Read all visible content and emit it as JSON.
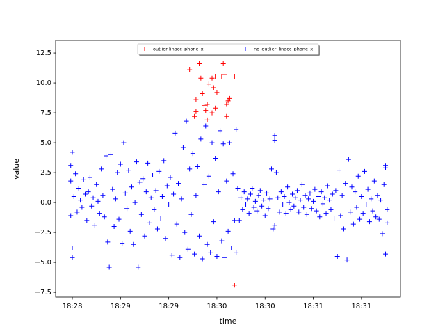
{
  "chart_data": {
    "type": "scatter",
    "xlabel": "time",
    "ylabel": "value",
    "xlim": [
      66469.6,
      66684.3
    ],
    "ylim": [
      -7.9,
      13.55
    ],
    "xticks": [
      {
        "value": 66480,
        "label": "18:28"
      },
      {
        "value": 66510,
        "label": "18:29"
      },
      {
        "value": 66540,
        "label": "18:29"
      },
      {
        "value": 66570,
        "label": "18:30"
      },
      {
        "value": 66600,
        "label": "18:30"
      },
      {
        "value": 66630,
        "label": "18:31"
      },
      {
        "value": 66660,
        "label": "18:31"
      }
    ],
    "yticks": [
      {
        "value": -7.5,
        "label": "−7.5"
      },
      {
        "value": -5,
        "label": "−5.0"
      },
      {
        "value": -2.5,
        "label": "−2.5"
      },
      {
        "value": 0,
        "label": "0.0"
      },
      {
        "value": 2.5,
        "label": "2.5"
      },
      {
        "value": 5,
        "label": "5.0"
      },
      {
        "value": 7.5,
        "label": "7.5"
      },
      {
        "value": 10,
        "label": "10.0"
      },
      {
        "value": 12.5,
        "label": "12.5"
      }
    ],
    "grid": false,
    "legend_location": "upper center",
    "series": [
      {
        "name": "outlier linacc_phone_x",
        "color": "#ff0000",
        "x": [
          66557,
          66553,
          66559,
          66560,
          66561,
          66563,
          66564,
          66565,
          66567,
          66568,
          66569,
          66570,
          66573,
          66574,
          66575,
          66576,
          66577,
          66578,
          66576,
          66581,
          66581,
          66556,
          66557,
          66562,
          66567,
          66569,
          66564
        ],
        "values": [
          8.6,
          11.1,
          11.6,
          10.4,
          9.1,
          7.7,
          8.2,
          9.9,
          10.4,
          9.6,
          10.5,
          9.2,
          10.5,
          11.6,
          10.7,
          8.2,
          8.5,
          8.7,
          7.2,
          10.5,
          -6.9,
          7.2,
          7.6,
          8.1,
          7.5,
          7.9,
          6.9
        ]
      },
      {
        "name": "no_outlier_linacc_phone_x",
        "color": "#0000ff",
        "x": [
          66479,
          66479,
          66479,
          66480,
          66480,
          66480,
          66481,
          66482,
          66483,
          66484,
          66485,
          66486,
          66487,
          66488,
          66489,
          66490,
          66491,
          66492,
          66493,
          66494,
          66495,
          66496,
          66497,
          66498,
          66499,
          66500,
          66501,
          66502,
          66503,
          66504,
          66505,
          66506,
          66507,
          66508,
          66509,
          66510,
          66511,
          66512,
          66513,
          66514,
          66515,
          66516,
          66517,
          66518,
          66519,
          66520,
          66521,
          66522,
          66523,
          66524,
          66525,
          66526,
          66527,
          66528,
          66529,
          66530,
          66531,
          66532,
          66533,
          66534,
          66535,
          66536,
          66537,
          66538,
          66539,
          66540,
          66541,
          66542,
          66543,
          66544,
          66545,
          66546,
          66547,
          66548,
          66549,
          66550,
          66551,
          66552,
          66553,
          66554,
          66555,
          66556,
          66557,
          66558,
          66559,
          66560,
          66561,
          66562,
          66563,
          66564,
          66565,
          66566,
          66567,
          66568,
          66569,
          66570,
          66571,
          66572,
          66573,
          66574,
          66575,
          66576,
          66577,
          66578,
          66579,
          66580,
          66581,
          66582,
          66582,
          66583,
          66584,
          66585,
          66586,
          66587,
          66588,
          66589,
          66590,
          66591,
          66592,
          66593,
          66594,
          66595,
          66596,
          66597,
          66598,
          66599,
          66600,
          66601,
          66602,
          66603,
          66604,
          66605,
          66606,
          66606,
          66606,
          66607,
          66608,
          66609,
          66610,
          66611,
          66612,
          66613,
          66614,
          66615,
          66616,
          66617,
          66618,
          66619,
          66620,
          66621,
          66622,
          66623,
          66624,
          66625,
          66626,
          66627,
          66628,
          66629,
          66630,
          66631,
          66632,
          66633,
          66634,
          66635,
          66636,
          66637,
          66638,
          66639,
          66640,
          66641,
          66642,
          66643,
          66644,
          66645,
          66646,
          66647,
          66648,
          66649,
          66650,
          66651,
          66652,
          66653,
          66654,
          66655,
          66656,
          66657,
          66658,
          66659,
          66660,
          66661,
          66662,
          66663,
          66664,
          66665,
          66666,
          66667,
          66668,
          66669,
          66670,
          66671,
          66672,
          66673,
          66674,
          66675,
          66675,
          66675,
          66676,
          66676
        ],
        "values": [
          1.8,
          -1.1,
          3.1,
          4.2,
          -3.8,
          -4.6,
          0.5,
          2.4,
          -0.8,
          1.2,
          0.2,
          -0.4,
          1.9,
          0.7,
          -1.5,
          0.9,
          2.1,
          -0.3,
          0.4,
          -1.9,
          1.5,
          0.1,
          -0.9,
          2.8,
          0.6,
          -1.2,
          3.9,
          -3.3,
          -5.4,
          4.0,
          1.1,
          -2.0,
          0.3,
          2.5,
          -1.4,
          3.2,
          -3.4,
          5.0,
          0.8,
          -0.5,
          2.7,
          -2.4,
          1.3,
          -3.5,
          0.0,
          3.4,
          -5.4,
          1.7,
          -1.0,
          2.0,
          -2.8,
          0.9,
          3.3,
          -1.7,
          0.4,
          2.3,
          -0.6,
          1.0,
          -2.2,
          2.6,
          -1.3,
          0.5,
          3.5,
          -3.0,
          1.4,
          -0.2,
          2.1,
          -4.4,
          0.7,
          5.8,
          -1.8,
          1.6,
          -4.6,
          0.3,
          4.6,
          -2.5,
          6.8,
          -3.9,
          2.8,
          -1.0,
          4.1,
          -4.3,
          0.6,
          3.0,
          -2.8,
          5.3,
          -4.7,
          1.5,
          6.4,
          -3.5,
          2.2,
          -4.2,
          5.0,
          -1.6,
          3.7,
          -4.5,
          0.9,
          6.0,
          -3.2,
          4.9,
          -4.6,
          1.8,
          -2.4,
          5.0,
          -3.8,
          2.4,
          -1.5,
          6.1,
          -4.2,
          1.2,
          -1.5,
          0.4,
          -0.6,
          0.9,
          -0.2,
          0.3,
          -0.9,
          0.7,
          1.2,
          -0.4,
          0.1,
          -0.7,
          0.6,
          1.0,
          -0.3,
          0.2,
          -1.1,
          0.8,
          -0.5,
          0.3,
          2.8,
          -2.2,
          5.6,
          5.2,
          -1.9,
          2.5,
          0.4,
          -0.8,
          0.9,
          -0.2,
          0.5,
          -0.9,
          1.3,
          0.0,
          -0.6,
          0.7,
          -0.3,
          0.4,
          1.0,
          -0.8,
          0.2,
          1.5,
          -0.4,
          0.6,
          -1.0,
          0.3,
          0.8,
          -0.5,
          0.1,
          1.1,
          -0.7,
          0.5,
          -1.2,
          0.9,
          -0.1,
          0.4,
          -0.9,
          1.4,
          0.2,
          -0.6,
          0.7,
          -1.3,
          1.0,
          -4.5,
          2.7,
          -1.1,
          0.6,
          -2.2,
          1.6,
          -4.8,
          3.6,
          -0.8,
          1.3,
          -1.8,
          0.9,
          -0.4,
          2.2,
          -1.4,
          0.5,
          -0.9,
          2.6,
          -0.2,
          1.1,
          -1.6,
          0.3,
          -0.7,
          1.8,
          -1.2,
          0.6,
          -1.4,
          0.2,
          -2.6,
          1.5,
          -4.3,
          3.1,
          2.9,
          -0.6,
          -1.7
        ]
      }
    ]
  }
}
